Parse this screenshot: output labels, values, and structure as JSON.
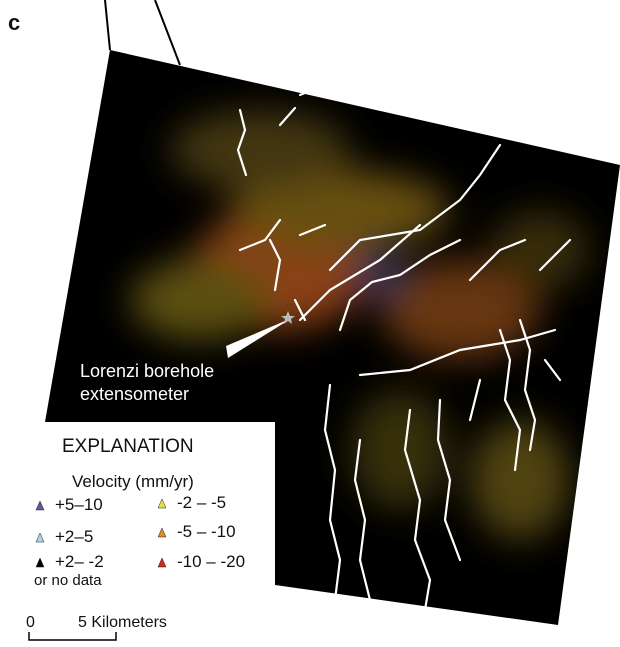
{
  "panel_label": "c",
  "annotation": {
    "line1": "Lorenzi borehole",
    "line2": "extensometer"
  },
  "legend": {
    "title": "EXPLANATION",
    "subtitle": "Velocity (mm/yr)",
    "items": [
      {
        "label": "+5–10",
        "color": "#5b5ba8"
      },
      {
        "label": "+2–5",
        "color": "#a8d8e8"
      },
      {
        "label": "+2– -2",
        "color": "#000000",
        "note": "or no data"
      },
      {
        "label": "-2 – -5",
        "color": "#e6e040"
      },
      {
        "label": "-5 – -10",
        "color": "#e08a28"
      },
      {
        "label": "-10 – -20",
        "color": "#d42a20"
      }
    ]
  },
  "scale": {
    "start": "0",
    "end": "5 Kilometers"
  }
}
